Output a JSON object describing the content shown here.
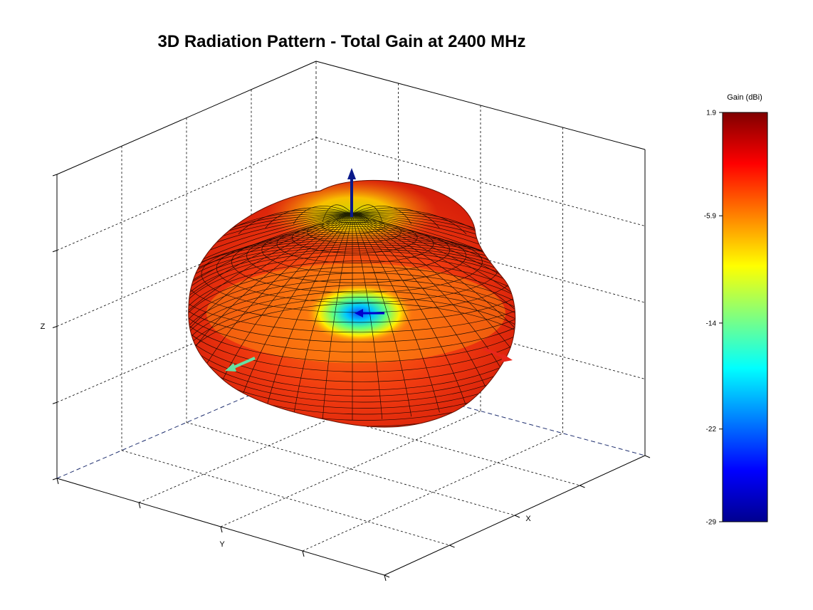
{
  "chart_data": {
    "type": "surface",
    "title": "3D Radiation Pattern - Total Gain at 2400 MHz",
    "frequency_mhz": 2400,
    "quantity": "Total Gain",
    "xlabel": "X",
    "ylabel": "Y",
    "zlabel": "Z",
    "colorbar": {
      "title": "Gain (dBi)",
      "ticks": [
        "1.9",
        "-5.9",
        "-14",
        "-22",
        "-29"
      ],
      "range": [
        -29,
        1.9
      ],
      "colormap": "jet"
    },
    "gain_range_dbi": [
      -29,
      1.9
    ],
    "grid": true,
    "box": true,
    "axis_arrows": [
      {
        "axis": "X",
        "color": "#e8261a"
      },
      {
        "axis": "Y",
        "color": "#66e0a3"
      },
      {
        "axis": "Z",
        "color": "#00008b"
      }
    ]
  }
}
